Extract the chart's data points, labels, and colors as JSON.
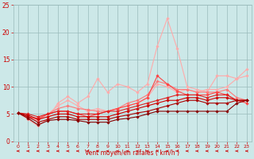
{
  "bg_color": "#cce8e8",
  "grid_color": "#99bbbb",
  "xlabel": "Vent moyen/en rafales ( km/h )",
  "xlabel_color": "#cc0000",
  "ylabel_color": "#cc0000",
  "tick_color": "#cc0000",
  "xlim": [
    -0.5,
    23.5
  ],
  "ylim": [
    0,
    25
  ],
  "yticks": [
    0,
    5,
    10,
    15,
    20,
    25
  ],
  "xticks": [
    0,
    1,
    2,
    3,
    4,
    5,
    6,
    7,
    8,
    9,
    10,
    11,
    12,
    13,
    14,
    15,
    16,
    17,
    18,
    19,
    20,
    21,
    22,
    23
  ],
  "series": [
    {
      "color": "#ffaaaa",
      "lw": 0.8,
      "marker": "D",
      "ms": 1.8,
      "y": [
        5.2,
        4.0,
        2.8,
        4.2,
        7.0,
        8.2,
        7.0,
        8.2,
        11.5,
        9.0,
        10.5,
        10.0,
        9.0,
        10.5,
        17.5,
        22.5,
        17.0,
        10.0,
        9.5,
        9.0,
        12.0,
        12.0,
        11.5,
        13.2
      ]
    },
    {
      "color": "#ffaaaa",
      "lw": 0.8,
      "marker": "D",
      "ms": 1.8,
      "y": [
        5.2,
        4.2,
        3.8,
        5.0,
        6.5,
        7.5,
        6.5,
        5.5,
        6.0,
        5.5,
        6.0,
        6.5,
        7.0,
        8.0,
        10.5,
        10.0,
        9.0,
        9.5,
        9.0,
        9.5,
        9.5,
        10.0,
        11.5,
        12.0
      ]
    },
    {
      "color": "#ff7777",
      "lw": 0.8,
      "marker": "D",
      "ms": 1.8,
      "y": [
        5.2,
        4.5,
        4.0,
        5.0,
        6.0,
        6.5,
        6.0,
        5.8,
        5.5,
        5.5,
        6.0,
        7.0,
        7.5,
        8.5,
        11.0,
        10.5,
        9.5,
        9.5,
        9.0,
        9.0,
        9.0,
        9.5,
        8.0,
        7.5
      ]
    },
    {
      "color": "#ff4444",
      "lw": 0.8,
      "marker": "D",
      "ms": 1.8,
      "y": [
        5.2,
        4.5,
        4.2,
        5.0,
        5.5,
        5.5,
        5.0,
        4.5,
        5.0,
        5.5,
        6.0,
        6.5,
        7.0,
        8.0,
        12.0,
        10.5,
        9.2,
        8.5,
        8.5,
        8.5,
        9.0,
        8.5,
        7.5,
        7.0
      ]
    },
    {
      "color": "#dd2222",
      "lw": 0.8,
      "marker": "D",
      "ms": 1.8,
      "y": [
        5.2,
        5.0,
        4.5,
        5.0,
        5.5,
        5.5,
        5.0,
        5.0,
        5.0,
        5.5,
        5.5,
        6.0,
        6.5,
        7.0,
        7.5,
        8.0,
        8.5,
        8.5,
        8.5,
        8.0,
        8.5,
        8.5,
        7.5,
        7.5
      ]
    },
    {
      "color": "#cc0000",
      "lw": 0.8,
      "marker": "D",
      "ms": 1.8,
      "y": [
        5.2,
        4.8,
        4.0,
        4.5,
        5.0,
        5.0,
        4.5,
        4.5,
        4.5,
        4.5,
        5.0,
        5.5,
        6.0,
        6.5,
        7.0,
        7.5,
        7.5,
        8.0,
        8.0,
        7.5,
        8.0,
        8.0,
        7.5,
        7.5
      ]
    },
    {
      "color": "#aa0000",
      "lw": 0.8,
      "marker": "D",
      "ms": 1.8,
      "y": [
        5.2,
        4.5,
        3.5,
        4.0,
        4.5,
        4.5,
        4.0,
        4.0,
        4.0,
        4.0,
        4.5,
        4.8,
        5.2,
        5.5,
        6.0,
        6.5,
        7.0,
        7.5,
        7.5,
        7.0,
        7.0,
        7.0,
        7.5,
        7.5
      ]
    },
    {
      "color": "#880000",
      "lw": 0.8,
      "marker": "D",
      "ms": 1.8,
      "y": [
        5.2,
        4.2,
        3.0,
        3.8,
        4.0,
        4.0,
        3.8,
        3.5,
        3.5,
        3.5,
        4.0,
        4.2,
        4.5,
        5.0,
        5.5,
        5.5,
        5.5,
        5.5,
        5.5,
        5.5,
        5.5,
        5.5,
        7.0,
        7.5
      ]
    }
  ],
  "arrow_color": "#cc0000",
  "figsize": [
    3.2,
    2.0
  ],
  "dpi": 100
}
